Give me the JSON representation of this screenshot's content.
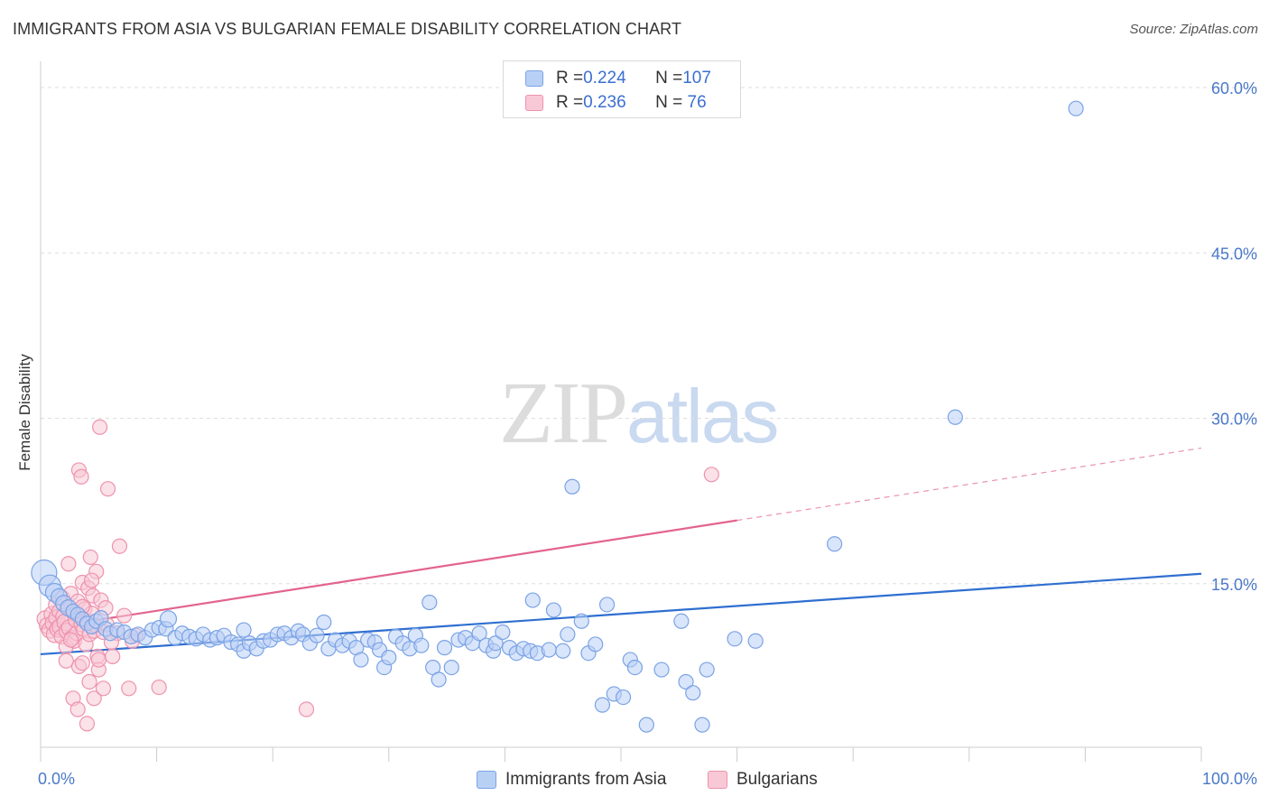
{
  "title": "IMMIGRANTS FROM ASIA VS BULGARIAN FEMALE DISABILITY CORRELATION CHART",
  "source": "Source: ZipAtlas.com",
  "watermark": {
    "zip": "ZIP",
    "atlas": "atlas"
  },
  "legend_top": [
    {
      "r_label": "R = ",
      "r_value": "0.224",
      "n_label": "N = ",
      "n_value": "107",
      "fill": "#b9d0f5",
      "stroke": "#7aa3e5"
    },
    {
      "r_label": "R = ",
      "r_value": "0.236",
      "n_label": "N = ",
      "n_value": " 76",
      "fill": "#f8c8d6",
      "stroke": "#ee92ad"
    }
  ],
  "legend_bottom": [
    {
      "label": "Immigrants from Asia",
      "fill": "#b9d0f5",
      "stroke": "#7aa3e5"
    },
    {
      "label": "Bulgarians",
      "fill": "#f8c8d6",
      "stroke": "#ee92ad"
    }
  ],
  "chart_data": {
    "type": "scatter",
    "ylabel": "Female Disability",
    "xlim": [
      0,
      100
    ],
    "ylim": [
      0,
      62
    ],
    "x_tick_labels": [
      {
        "value": 0,
        "label": "0.0%"
      },
      {
        "value": 100,
        "label": "100.0%"
      }
    ],
    "y_tick_labels": [
      {
        "value": 15,
        "label": "15.0%"
      },
      {
        "value": 30,
        "label": "30.0%"
      },
      {
        "value": 45,
        "label": "45.0%"
      },
      {
        "value": 60,
        "label": "60.0%"
      }
    ],
    "x_minor_ticks": [
      0,
      10,
      20,
      30,
      40,
      50,
      60,
      70,
      80,
      90,
      100
    ],
    "grid": true,
    "series": [
      {
        "name": "Immigrants from Asia",
        "color": "#7aa3e5",
        "fill": "#b9d0f5",
        "line_color": "#2f6fd0",
        "trend": {
          "x0": 0,
          "y0": 8.6,
          "x1": 100,
          "y1": 15.9,
          "dash_from": null
        },
        "points": [
          [
            0.3,
            16.0,
            14
          ],
          [
            0.8,
            14.8,
            12
          ],
          [
            1.2,
            14.2,
            10
          ],
          [
            1.6,
            13.8,
            9
          ],
          [
            2.0,
            13.2,
            9
          ],
          [
            2.4,
            12.8,
            9
          ],
          [
            2.8,
            12.5,
            8
          ],
          [
            3.2,
            12.2,
            8
          ],
          [
            3.6,
            11.8,
            8
          ],
          [
            4.0,
            11.4,
            8
          ],
          [
            4.4,
            11.1,
            8
          ],
          [
            4.8,
            11.6,
            8
          ],
          [
            5.2,
            11.9,
            8
          ],
          [
            5.6,
            10.9,
            8
          ],
          [
            6.0,
            10.5,
            8
          ],
          [
            6.6,
            10.8,
            8
          ],
          [
            7.2,
            10.6,
            8
          ],
          [
            7.8,
            10.2,
            8
          ],
          [
            8.4,
            10.4,
            8
          ],
          [
            9.0,
            10.1,
            8
          ],
          [
            9.6,
            10.8,
            8
          ],
          [
            10.2,
            11.0,
            8
          ],
          [
            10.8,
            10.9,
            8
          ],
          [
            11.0,
            11.8,
            9
          ],
          [
            11.6,
            10.1,
            8
          ],
          [
            12.2,
            10.5,
            8
          ],
          [
            12.8,
            10.2,
            8
          ],
          [
            13.4,
            10.0,
            8
          ],
          [
            14.0,
            10.4,
            8
          ],
          [
            14.6,
            9.9,
            8
          ],
          [
            15.2,
            10.1,
            8
          ],
          [
            15.8,
            10.3,
            8
          ],
          [
            16.4,
            9.7,
            8
          ],
          [
            17.0,
            9.5,
            8
          ],
          [
            17.5,
            8.9,
            8
          ],
          [
            17.5,
            10.8,
            8
          ],
          [
            18.0,
            9.6,
            8
          ],
          [
            18.6,
            9.1,
            8
          ],
          [
            19.2,
            9.8,
            8
          ],
          [
            19.8,
            9.9,
            8
          ],
          [
            20.4,
            10.4,
            8
          ],
          [
            21.0,
            10.5,
            8
          ],
          [
            21.6,
            10.1,
            8
          ],
          [
            22.2,
            10.7,
            8
          ],
          [
            22.6,
            10.4,
            8
          ],
          [
            23.2,
            9.6,
            8
          ],
          [
            23.8,
            10.3,
            8
          ],
          [
            24.4,
            11.5,
            8
          ],
          [
            24.8,
            9.1,
            8
          ],
          [
            25.4,
            9.9,
            8
          ],
          [
            26.0,
            9.4,
            8
          ],
          [
            26.6,
            9.8,
            8
          ],
          [
            27.2,
            9.2,
            8
          ],
          [
            27.6,
            8.1,
            8
          ],
          [
            28.2,
            9.9,
            8
          ],
          [
            28.8,
            9.7,
            8
          ],
          [
            29.2,
            9.0,
            8
          ],
          [
            29.6,
            7.4,
            8
          ],
          [
            30.0,
            8.3,
            8
          ],
          [
            30.6,
            10.2,
            8
          ],
          [
            31.2,
            9.6,
            8
          ],
          [
            31.8,
            9.1,
            8
          ],
          [
            32.3,
            10.3,
            8
          ],
          [
            32.8,
            9.4,
            8
          ],
          [
            33.5,
            13.3,
            8
          ],
          [
            33.8,
            7.4,
            8
          ],
          [
            34.3,
            6.3,
            8
          ],
          [
            34.8,
            9.2,
            8
          ],
          [
            35.4,
            7.4,
            8
          ],
          [
            36.0,
            9.9,
            8
          ],
          [
            36.6,
            10.1,
            8
          ],
          [
            37.2,
            9.6,
            8
          ],
          [
            37.8,
            10.5,
            8
          ],
          [
            38.4,
            9.4,
            8
          ],
          [
            39.0,
            8.9,
            8
          ],
          [
            39.2,
            9.6,
            8
          ],
          [
            39.8,
            10.6,
            8
          ],
          [
            40.4,
            9.2,
            8
          ],
          [
            41.0,
            8.7,
            8
          ],
          [
            41.6,
            9.1,
            8
          ],
          [
            42.2,
            8.9,
            8
          ],
          [
            42.4,
            13.5,
            8
          ],
          [
            42.8,
            8.7,
            8
          ],
          [
            43.8,
            9.0,
            8
          ],
          [
            44.2,
            12.6,
            8
          ],
          [
            45.0,
            8.9,
            8
          ],
          [
            45.4,
            10.4,
            8
          ],
          [
            45.8,
            23.8,
            8
          ],
          [
            46.6,
            11.6,
            8
          ],
          [
            47.2,
            8.7,
            8
          ],
          [
            47.8,
            9.5,
            8
          ],
          [
            48.4,
            4.0,
            8
          ],
          [
            48.8,
            13.1,
            8
          ],
          [
            49.4,
            5.0,
            8
          ],
          [
            50.2,
            4.7,
            8
          ],
          [
            50.8,
            8.1,
            8
          ],
          [
            51.2,
            7.4,
            8
          ],
          [
            52.2,
            2.2,
            8
          ],
          [
            53.5,
            7.2,
            8
          ],
          [
            55.6,
            6.1,
            8
          ],
          [
            55.2,
            11.6,
            8
          ],
          [
            56.2,
            5.1,
            8
          ],
          [
            57.0,
            2.2,
            8
          ],
          [
            57.4,
            7.2,
            8
          ],
          [
            59.8,
            10.0,
            8
          ],
          [
            61.6,
            9.8,
            8
          ],
          [
            68.4,
            18.6,
            8
          ],
          [
            78.8,
            30.1,
            8
          ],
          [
            89.2,
            58.1,
            8
          ]
        ]
      },
      {
        "name": "Bulgarians",
        "color": "#ee92ad",
        "fill": "#f8c8d6",
        "line_color": "#e2648e",
        "trend": {
          "x0": 0,
          "y0": 10.9,
          "x1": 100,
          "y1": 27.3,
          "dash_from": 60
        },
        "points": [
          [
            0.4,
            11.8,
            9
          ],
          [
            0.6,
            11.2,
            9
          ],
          [
            0.8,
            10.8,
            9
          ],
          [
            1.0,
            12.2,
            9
          ],
          [
            1.1,
            11.4,
            9
          ],
          [
            1.2,
            10.4,
            9
          ],
          [
            1.3,
            13.1,
            8
          ],
          [
            1.4,
            11.9,
            9
          ],
          [
            1.5,
            10.9,
            9
          ],
          [
            1.6,
            12.5,
            8
          ],
          [
            1.7,
            11.1,
            9
          ],
          [
            1.8,
            10.2,
            8
          ],
          [
            1.9,
            13.7,
            8
          ],
          [
            2.0,
            12.0,
            9
          ],
          [
            2.1,
            11.5,
            9
          ],
          [
            2.2,
            9.3,
            8
          ],
          [
            2.3,
            10.7,
            9
          ],
          [
            2.4,
            12.9,
            8
          ],
          [
            2.5,
            11.0,
            9
          ],
          [
            2.6,
            14.1,
            8
          ],
          [
            2.7,
            10.1,
            8
          ],
          [
            2.8,
            12.4,
            8
          ],
          [
            2.9,
            9.8,
            8
          ],
          [
            3.0,
            11.7,
            8
          ],
          [
            3.1,
            10.5,
            8
          ],
          [
            3.2,
            13.4,
            8
          ],
          [
            3.3,
            7.5,
            8
          ],
          [
            3.4,
            12.1,
            8
          ],
          [
            3.5,
            11.3,
            8
          ],
          [
            3.6,
            15.1,
            8
          ],
          [
            3.7,
            10.9,
            8
          ],
          [
            3.8,
            12.7,
            8
          ],
          [
            3.9,
            9.5,
            8
          ],
          [
            4.0,
            11.6,
            8
          ],
          [
            4.1,
            14.6,
            8
          ],
          [
            4.2,
            10.4,
            8
          ],
          [
            4.3,
            17.4,
            8
          ],
          [
            4.4,
            12.3,
            8
          ],
          [
            4.5,
            13.9,
            8
          ],
          [
            4.6,
            10.7,
            8
          ],
          [
            4.7,
            11.2,
            8
          ],
          [
            4.8,
            16.1,
            8
          ],
          [
            4.9,
            8.4,
            8
          ],
          [
            5.0,
            7.2,
            8
          ],
          [
            5.2,
            13.5,
            8
          ],
          [
            5.4,
            10.6,
            8
          ],
          [
            5.6,
            12.8,
            8
          ],
          [
            5.8,
            23.6,
            8
          ],
          [
            6.2,
            8.4,
            8
          ],
          [
            6.6,
            10.5,
            8
          ],
          [
            6.8,
            18.4,
            8
          ],
          [
            7.2,
            12.1,
            8
          ],
          [
            7.6,
            5.5,
            8
          ],
          [
            8.2,
            10.3,
            8
          ],
          [
            2.8,
            4.6,
            8
          ],
          [
            3.2,
            3.6,
            8
          ],
          [
            3.6,
            7.8,
            8
          ],
          [
            4.0,
            2.3,
            8
          ],
          [
            4.2,
            6.1,
            8
          ],
          [
            4.6,
            4.6,
            8
          ],
          [
            5.0,
            8.1,
            8
          ],
          [
            5.4,
            5.5,
            8
          ],
          [
            2.6,
            9.9,
            8
          ],
          [
            2.4,
            16.8,
            8
          ],
          [
            2.2,
            8.0,
            8
          ],
          [
            3.3,
            25.3,
            8
          ],
          [
            3.5,
            24.7,
            8
          ],
          [
            5.1,
            29.2,
            8
          ],
          [
            4.4,
            15.3,
            8
          ],
          [
            3.6,
            12.9,
            8
          ],
          [
            6.1,
            9.7,
            8
          ],
          [
            7.9,
            9.8,
            8
          ],
          [
            10.2,
            5.6,
            8
          ],
          [
            22.9,
            3.6,
            8
          ],
          [
            57.8,
            24.9,
            8
          ],
          [
            5.7,
            11.3,
            8
          ]
        ]
      }
    ]
  }
}
